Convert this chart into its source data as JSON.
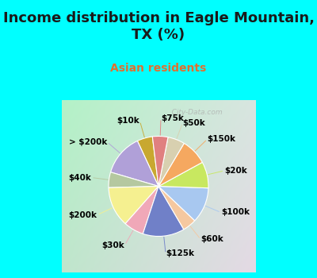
{
  "title": "Income distribution in Eagle Mountain,\nTX (%)",
  "subtitle": "Asian residents",
  "bg_color": "#00FFFF",
  "chart_bg_color": "#d4ede4",
  "labels": [
    "$10k",
    "> $200k",
    "$40k",
    "$200k",
    "$30k",
    "$125k",
    "$60k",
    "$100k",
    "$20k",
    "$150k",
    "$50k",
    "$75k"
  ],
  "sizes": [
    5.0,
    13.5,
    5.0,
    13.0,
    6.5,
    13.5,
    4.5,
    11.5,
    8.5,
    8.5,
    5.5,
    5.0
  ],
  "colors": [
    "#c8a830",
    "#b0a0d8",
    "#b5c8a0",
    "#f5f090",
    "#f0a8b8",
    "#7080c8",
    "#f5c8a0",
    "#a8c8f0",
    "#c8e860",
    "#f5a860",
    "#d8d0b0",
    "#e08080"
  ],
  "startangle": 97,
  "label_fontsize": 7.5,
  "title_fontsize": 13,
  "subtitle_fontsize": 10,
  "subtitle_color": "#e07030",
  "title_color": "#1a1a1a",
  "watermark": "   City-Data.com",
  "wedge_linewidth": 0.8,
  "wedge_edgecolor": "white"
}
